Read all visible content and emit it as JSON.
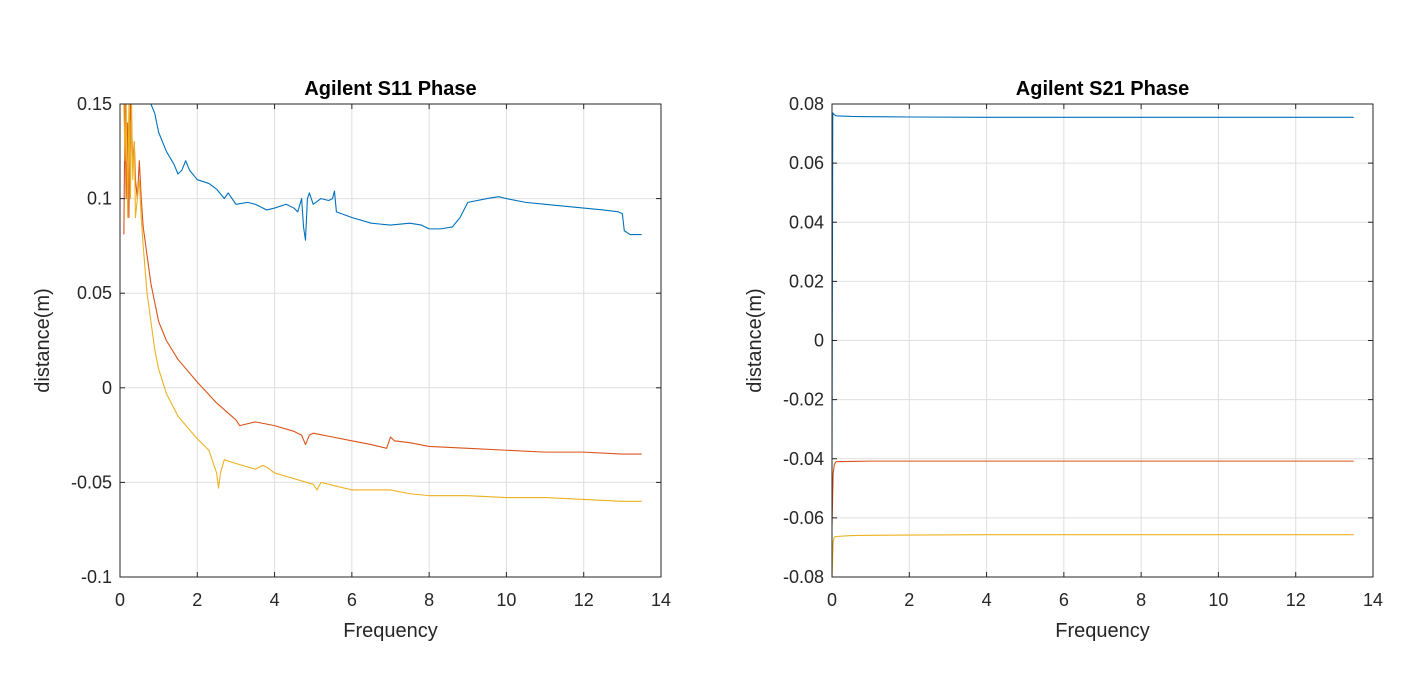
{
  "chart_data": [
    {
      "type": "line",
      "title": "Agilent S11 Phase",
      "xlabel": "Frequency",
      "ylabel": "distance(m)",
      "xlim": [
        0,
        14
      ],
      "ylim": [
        -0.1,
        0.15
      ],
      "xticks": [
        0,
        2,
        4,
        6,
        8,
        10,
        12,
        14
      ],
      "yticks": [
        -0.1,
        -0.05,
        0,
        0.05,
        0.1,
        0.15
      ],
      "ytick_labels": [
        "-0.1",
        "-0.05",
        "0",
        "0.05",
        "0.1",
        "0.15"
      ],
      "grid": true,
      "colors": [
        "#0072BD",
        "#D95319",
        "#EDB120"
      ],
      "series": [
        {
          "x": [
            0.15,
            0.3,
            0.5,
            0.8,
            0.9,
            1.0,
            1.2,
            1.4,
            1.5,
            1.6,
            1.7,
            1.8,
            2.0,
            2.3,
            2.5,
            2.7,
            2.8,
            3.0,
            3.3,
            3.5,
            3.8,
            4.0,
            4.3,
            4.5,
            4.6,
            4.7,
            4.75,
            4.8,
            4.85,
            4.9,
            5.0,
            5.2,
            5.4,
            5.5,
            5.55,
            5.6,
            6.0,
            6.5,
            7.0,
            7.5,
            7.8,
            8.0,
            8.3,
            8.6,
            8.8,
            9.0,
            9.5,
            9.8,
            10.0,
            10.5,
            11.0,
            11.5,
            12.0,
            12.5,
            12.9,
            13.0,
            13.05,
            13.2,
            13.5
          ],
          "y": [
            0.15,
            0.15,
            0.15,
            0.15,
            0.145,
            0.135,
            0.125,
            0.118,
            0.113,
            0.115,
            0.12,
            0.115,
            0.11,
            0.108,
            0.105,
            0.1,
            0.103,
            0.097,
            0.098,
            0.097,
            0.094,
            0.095,
            0.097,
            0.095,
            0.093,
            0.1,
            0.085,
            0.078,
            0.1,
            0.103,
            0.097,
            0.1,
            0.099,
            0.1,
            0.104,
            0.093,
            0.09,
            0.087,
            0.086,
            0.087,
            0.086,
            0.084,
            0.084,
            0.085,
            0.09,
            0.098,
            0.1,
            0.101,
            0.1,
            0.098,
            0.097,
            0.096,
            0.095,
            0.094,
            0.093,
            0.092,
            0.083,
            0.081,
            0.081
          ]
        },
        {
          "x": [
            0.1,
            0.13,
            0.16,
            0.2,
            0.23,
            0.27,
            0.3,
            0.33,
            0.37,
            0.4,
            0.45,
            0.5,
            0.55,
            0.6,
            0.7,
            0.8,
            0.9,
            1.0,
            1.2,
            1.5,
            2.0,
            2.5,
            3.0,
            3.1,
            3.5,
            4.0,
            4.5,
            4.7,
            4.8,
            4.9,
            5.0,
            5.5,
            6.0,
            6.5,
            6.9,
            7.0,
            7.1,
            7.5,
            8.0,
            9.0,
            10.0,
            11.0,
            12.0,
            13.0,
            13.5
          ],
          "y": [
            0.081,
            0.15,
            0.1,
            0.14,
            0.09,
            0.15,
            0.14,
            0.12,
            0.13,
            0.11,
            0.1,
            0.12,
            0.1,
            0.085,
            0.07,
            0.055,
            0.045,
            0.035,
            0.025,
            0.015,
            0.003,
            -0.008,
            -0.017,
            -0.02,
            -0.018,
            -0.02,
            -0.023,
            -0.025,
            -0.03,
            -0.025,
            -0.024,
            -0.026,
            -0.028,
            -0.03,
            -0.032,
            -0.026,
            -0.028,
            -0.029,
            -0.031,
            -0.032,
            -0.033,
            -0.034,
            -0.034,
            -0.035,
            -0.035
          ]
        },
        {
          "x": [
            0.1,
            0.13,
            0.16,
            0.2,
            0.23,
            0.27,
            0.3,
            0.33,
            0.37,
            0.4,
            0.45,
            0.5,
            0.55,
            0.6,
            0.7,
            0.8,
            0.9,
            1.0,
            1.2,
            1.5,
            2.0,
            2.3,
            2.5,
            2.55,
            2.6,
            2.7,
            3.0,
            3.5,
            3.7,
            3.8,
            4.0,
            4.5,
            5.0,
            5.1,
            5.2,
            6.0,
            7.0,
            7.5,
            8.0,
            9.0,
            10.0,
            11.0,
            12.0,
            13.0,
            13.5
          ],
          "y": [
            0.15,
            0.12,
            0.15,
            0.09,
            0.15,
            0.1,
            0.15,
            0.11,
            0.13,
            0.09,
            0.1,
            0.11,
            0.09,
            0.075,
            0.05,
            0.035,
            0.02,
            0.01,
            -0.003,
            -0.015,
            -0.027,
            -0.033,
            -0.045,
            -0.053,
            -0.045,
            -0.038,
            -0.04,
            -0.043,
            -0.041,
            -0.042,
            -0.045,
            -0.048,
            -0.051,
            -0.054,
            -0.05,
            -0.054,
            -0.054,
            -0.056,
            -0.057,
            -0.057,
            -0.058,
            -0.058,
            -0.059,
            -0.06,
            -0.06
          ]
        }
      ]
    },
    {
      "type": "line",
      "title": "Agilent S21 Phase",
      "xlabel": "Frequency",
      "ylabel": "distance(m)",
      "xlim": [
        0,
        14
      ],
      "ylim": [
        -0.08,
        0.08
      ],
      "xticks": [
        0,
        2,
        4,
        6,
        8,
        10,
        12,
        14
      ],
      "yticks": [
        -0.08,
        -0.06,
        -0.04,
        -0.02,
        0,
        0.02,
        0.04,
        0.06,
        0.08
      ],
      "ytick_labels": [
        "-0.08",
        "-0.06",
        "-0.04",
        "-0.02",
        "0",
        "0.02",
        "0.04",
        "0.06",
        "0.08"
      ],
      "grid": true,
      "colors": [
        "#0072BD",
        "#D95319",
        "#EDB120"
      ],
      "series": [
        {
          "x": [
            0.0,
            0.02,
            0.05,
            0.1,
            0.5,
            1.0,
            2.0,
            4.0,
            6.0,
            8.0,
            10.0,
            12.0,
            13.5
          ],
          "y": [
            -0.04,
            0.077,
            0.0765,
            0.076,
            0.0758,
            0.0757,
            0.0756,
            0.0755,
            0.0755,
            0.0755,
            0.0755,
            0.0755,
            0.0755
          ]
        },
        {
          "x": [
            0.0,
            0.03,
            0.06,
            0.1,
            0.5,
            1.0,
            2.0,
            4.0,
            6.0,
            8.0,
            10.0,
            12.0,
            13.5
          ],
          "y": [
            -0.063,
            -0.045,
            -0.042,
            -0.041,
            -0.0409,
            -0.0408,
            -0.0408,
            -0.0408,
            -0.0408,
            -0.0408,
            -0.0408,
            -0.0408,
            -0.0408
          ]
        },
        {
          "x": [
            0.0,
            0.03,
            0.06,
            0.1,
            0.5,
            1.0,
            2.0,
            4.0,
            6.0,
            8.0,
            10.0,
            12.0,
            13.5
          ],
          "y": [
            -0.08,
            -0.068,
            -0.0665,
            -0.0663,
            -0.066,
            -0.0659,
            -0.0658,
            -0.0657,
            -0.0657,
            -0.0657,
            -0.0657,
            -0.0657,
            -0.0657
          ]
        }
      ]
    }
  ]
}
